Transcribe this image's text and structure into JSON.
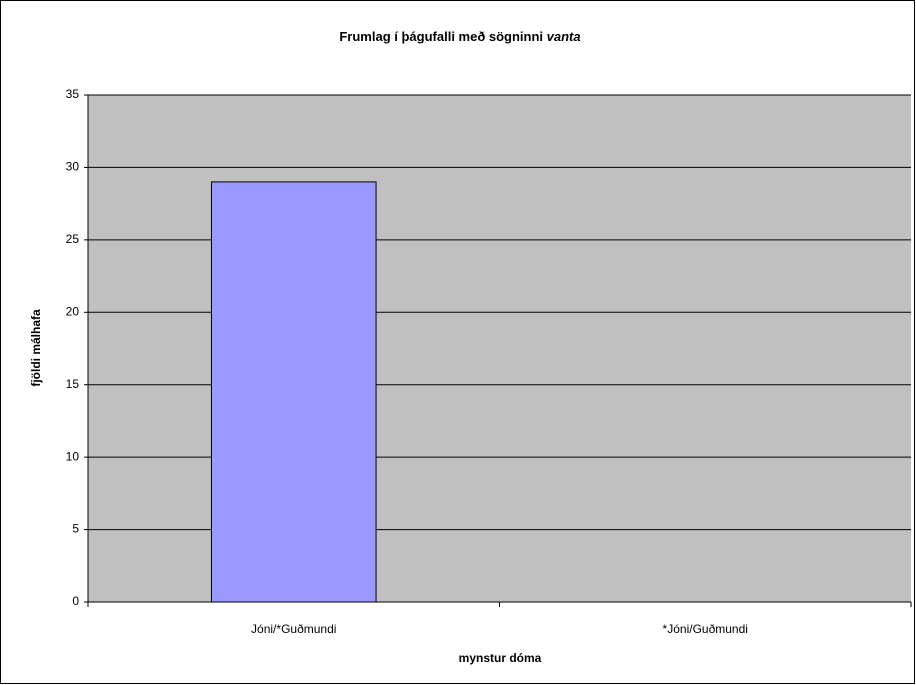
{
  "chart_data": {
    "type": "bar",
    "title": "Frumlag í þágufalli með sögninni vanta",
    "x_label": "mynstur dóma",
    "y_label": "fjöldi málhafa",
    "categories": [
      "Jóni/*Guðmundi",
      "*Jóni/Guðmundi"
    ],
    "values": [
      29,
      0
    ],
    "color": "#9999ff",
    "ylim": [
      0,
      35
    ],
    "yticks": [
      0,
      5,
      10,
      15,
      20,
      25,
      30,
      35
    ],
    "grid": true
  }
}
